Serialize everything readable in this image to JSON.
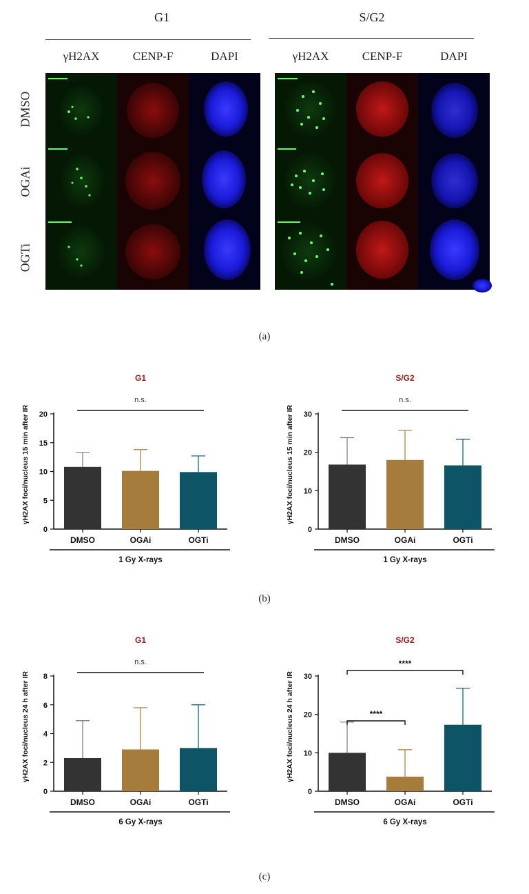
{
  "panel_a": {
    "group_headers": [
      "G1",
      "S/G2"
    ],
    "channels": [
      "γH2AX",
      "CENP-F",
      "DAPI"
    ],
    "rows": [
      "DMSO",
      "OGAi",
      "OGTi"
    ],
    "caption": "(a)"
  },
  "panel_b_caption": "(b)",
  "panel_c_caption": "(c)",
  "colors": {
    "DMSO": "#333333",
    "OGAi": "#a67c3d",
    "OGTi": "#0d5566",
    "title": "#9b1c1c",
    "error": "#999999"
  },
  "chart_data": [
    {
      "type": "bar",
      "title": "G1",
      "ylabel": "γH2AX foci/nucleus 15 min after IR",
      "xlabel": "1 Gy X-rays",
      "categories": [
        "DMSO",
        "OGAi",
        "OGTi"
      ],
      "values": [
        10.8,
        10.1,
        9.9
      ],
      "errors": [
        2.5,
        3.7,
        2.8
      ],
      "ylim": [
        0,
        20
      ],
      "yticks": [
        "0",
        "5",
        "10",
        "15",
        "20"
      ],
      "yticks_values": [
        0,
        5,
        10,
        15,
        20
      ],
      "significance": [
        {
          "from": 0,
          "to": 2,
          "label": "n.s."
        }
      ]
    },
    {
      "type": "bar",
      "title": "S/G2",
      "ylabel": "γH2AX foci/nucleus 15 min after IR",
      "xlabel": "1 Gy X-rays",
      "categories": [
        "DMSO",
        "OGAi",
        "OGTi"
      ],
      "values": [
        16.8,
        18.0,
        16.6
      ],
      "errors": [
        7.0,
        7.7,
        6.8
      ],
      "ylim": [
        0,
        30
      ],
      "yticks": [
        "0",
        "10",
        "20",
        "30"
      ],
      "yticks_values": [
        0,
        10,
        20,
        30
      ],
      "significance": [
        {
          "from": 0,
          "to": 2,
          "label": "n.s."
        }
      ]
    },
    {
      "type": "bar",
      "title": "G1",
      "ylabel": "γH2AX foci/nucleus 24 h after IR",
      "xlabel": "6 Gy X-rays",
      "categories": [
        "DMSO",
        "OGAi",
        "OGTi"
      ],
      "values": [
        2.3,
        2.9,
        3.0
      ],
      "errors": [
        2.6,
        2.9,
        3.0
      ],
      "ylim": [
        0,
        8
      ],
      "yticks": [
        "0",
        "2",
        "4",
        "6",
        "8"
      ],
      "yticks_values": [
        0,
        2,
        4,
        6,
        8
      ],
      "significance": [
        {
          "from": 0,
          "to": 2,
          "label": "n.s."
        }
      ]
    },
    {
      "type": "bar",
      "title": "S/G2",
      "ylabel": "γH2AX foci/nucleus 24 h after IR",
      "xlabel": "6 Gy X-rays",
      "categories": [
        "DMSO",
        "OGAi",
        "OGTi"
      ],
      "values": [
        10.0,
        3.8,
        17.3
      ],
      "errors": [
        8.0,
        7.0,
        9.5
      ],
      "ylim": [
        0,
        30
      ],
      "yticks": [
        "0",
        "10",
        "20",
        "30"
      ],
      "yticks_values": [
        0,
        10,
        20,
        30
      ],
      "significance": [
        {
          "from": 0,
          "to": 1,
          "label": "****"
        },
        {
          "from": 0,
          "to": 2,
          "label": "****"
        }
      ]
    }
  ]
}
